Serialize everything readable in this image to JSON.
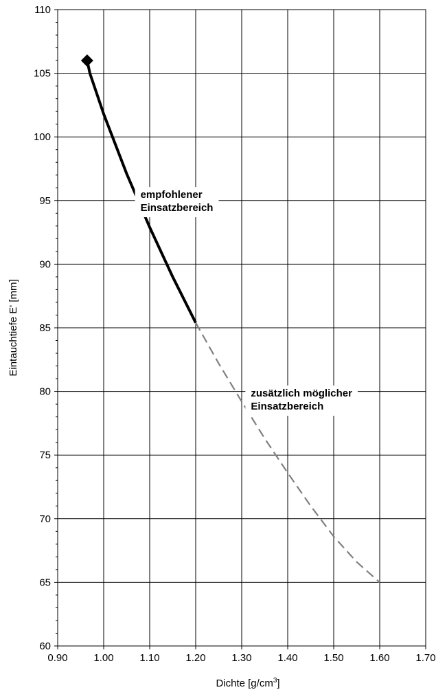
{
  "chart_data": {
    "type": "line",
    "title": "",
    "xlabel": "Dichte [g/cm",
    "xlabel_sup": "3",
    "xlabel_close": "]",
    "ylabel": "Eintauchtiefe E' [mm]",
    "xlim": [
      0.9,
      1.7
    ],
    "ylim": [
      60,
      110
    ],
    "x_ticks": [
      0.9,
      1.0,
      1.1,
      1.2,
      1.3,
      1.4,
      1.5,
      1.6,
      1.7
    ],
    "x_tick_labels": [
      "0.90",
      "1.00",
      "1.10",
      "1.20",
      "1.30",
      "1.40",
      "1.50",
      "1.60",
      "1.70"
    ],
    "y_ticks": [
      60,
      65,
      70,
      75,
      80,
      85,
      90,
      95,
      100,
      105,
      110
    ],
    "y_tick_labels": [
      "60",
      "65",
      "70",
      "75",
      "80",
      "85",
      "90",
      "95",
      "100",
      "105",
      "110"
    ],
    "grid": true,
    "series": [
      {
        "style": "solid",
        "color": "#000000",
        "x": [
          0.964,
          0.97,
          1.0,
          1.05,
          1.1,
          1.15,
          1.2
        ],
        "y": [
          106.0,
          105.0,
          101.8,
          97.1,
          92.9,
          89.0,
          85.4
        ]
      },
      {
        "style": "dashed",
        "color": "#808080",
        "x": [
          1.2,
          1.25,
          1.3,
          1.35,
          1.4,
          1.45,
          1.5,
          1.55,
          1.6
        ],
        "y": [
          85.4,
          82.2,
          79.2,
          76.3,
          73.6,
          71.0,
          68.6,
          66.6,
          65.0
        ]
      }
    ],
    "marker": {
      "x": 0.964,
      "y": 106.0,
      "shape": "diamond",
      "color": "#000000"
    },
    "annotations": [
      {
        "lines": [
          "empfohlener",
          "Einsatzbereich"
        ],
        "x": 1.08,
        "y": 95.2
      },
      {
        "lines": [
          "zusätzlich möglicher",
          "Einsatzbereich"
        ],
        "x": 1.32,
        "y": 79.6
      }
    ]
  }
}
